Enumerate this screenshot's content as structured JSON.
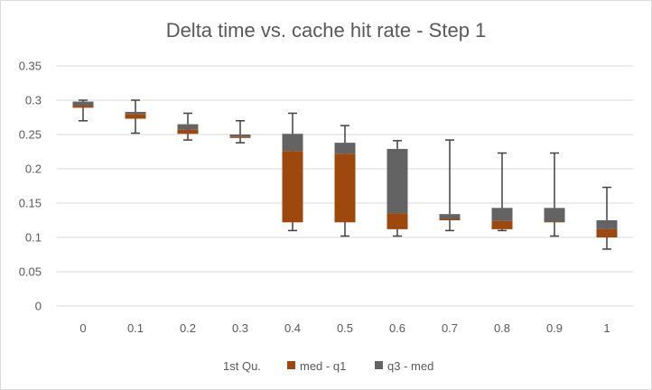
{
  "chart_data": {
    "type": "box",
    "title": "Delta time vs. cache hit rate - Step 1",
    "xlabel": "",
    "ylabel": "",
    "ylim": [
      0,
      0.35
    ],
    "y_ticks": [
      "0",
      "0.05",
      "0.1",
      "0.15",
      "0.2",
      "0.25",
      "0.3",
      "0.35"
    ],
    "categories": [
      "0",
      "0.1",
      "0.2",
      "0.3",
      "0.4",
      "0.5",
      "0.6",
      "0.7",
      "0.8",
      "0.9",
      "1"
    ],
    "series": [
      {
        "name": "1st Qu.",
        "color": "none",
        "values": [
          0.289,
          0.273,
          0.251,
          0.245,
          0.122,
          0.122,
          0.112,
          0.125,
          0.112,
          0.122,
          0.1
        ]
      },
      {
        "name": "med - q1",
        "color": "#9e480e",
        "values": [
          0.003,
          0.007,
          0.006,
          0.002,
          0.104,
          0.1,
          0.023,
          0.002,
          0.012,
          0.001,
          0.012
        ]
      },
      {
        "name": "q3 - med",
        "color": "#636363",
        "values": [
          0.006,
          0.003,
          0.008,
          0.003,
          0.025,
          0.016,
          0.094,
          0.007,
          0.019,
          0.02,
          0.013
        ]
      }
    ],
    "whisker_low": [
      0.27,
      0.252,
      0.242,
      0.238,
      0.11,
      0.102,
      0.102,
      0.11,
      0.11,
      0.102,
      0.083
    ],
    "whisker_high": [
      0.3,
      0.3,
      0.281,
      0.27,
      0.281,
      0.263,
      0.241,
      0.242,
      0.223,
      0.223,
      0.173
    ],
    "grid": true,
    "legend_position": "bottom"
  }
}
